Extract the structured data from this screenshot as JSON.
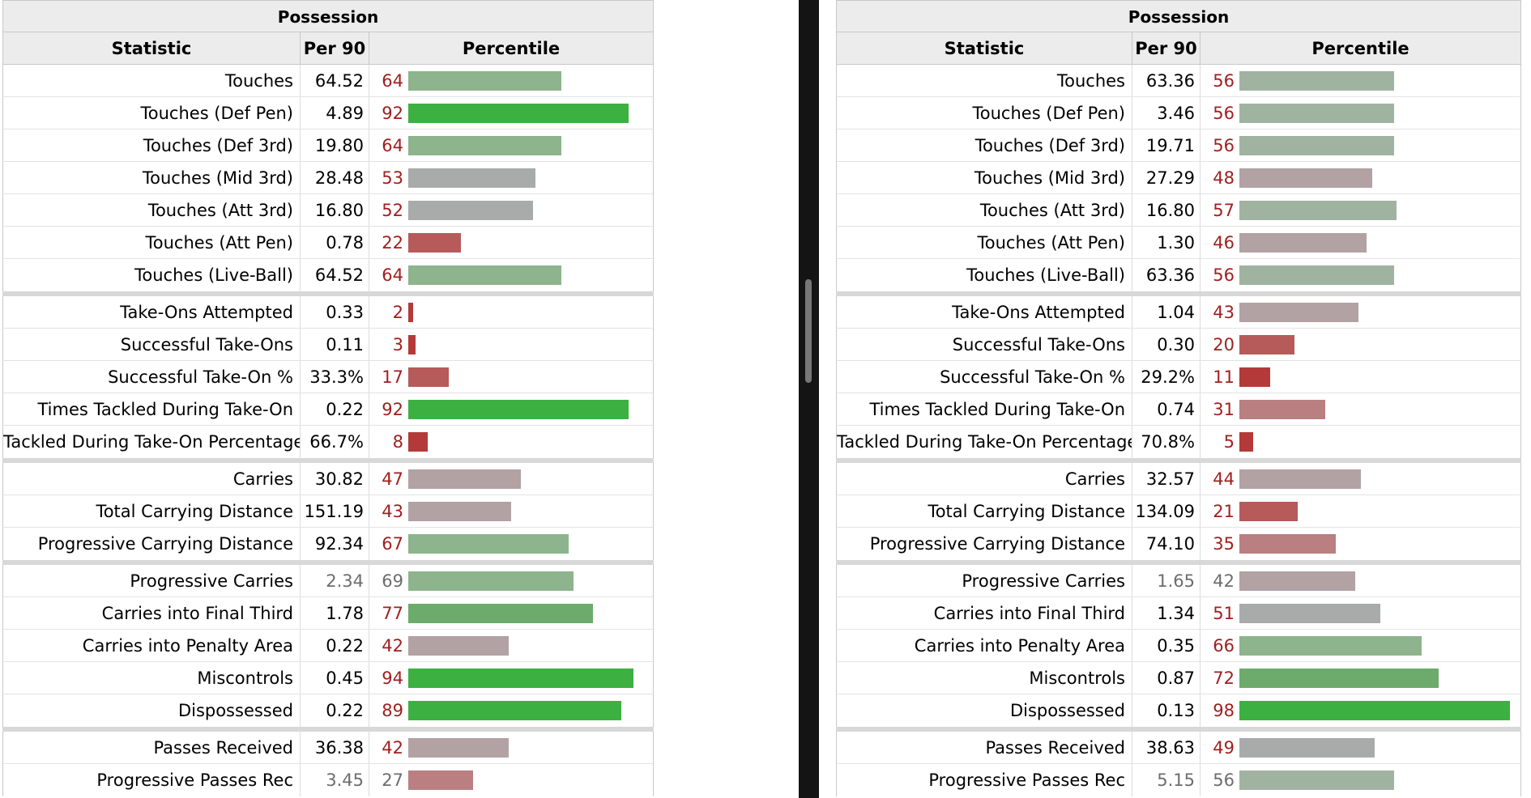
{
  "panels": [
    {
      "id": "left",
      "title": "Possession",
      "columns": {
        "stat": "Statistic",
        "per90": "Per 90",
        "percentile": "Percentile"
      },
      "groups": [
        [
          {
            "stat": "Touches",
            "per90": "64.52",
            "pct": 64
          },
          {
            "stat": "Touches (Def Pen)",
            "per90": "4.89",
            "pct": 92
          },
          {
            "stat": "Touches (Def 3rd)",
            "per90": "19.80",
            "pct": 64
          },
          {
            "stat": "Touches (Mid 3rd)",
            "per90": "28.48",
            "pct": 53
          },
          {
            "stat": "Touches (Att 3rd)",
            "per90": "16.80",
            "pct": 52
          },
          {
            "stat": "Touches (Att Pen)",
            "per90": "0.78",
            "pct": 22
          },
          {
            "stat": "Touches (Live-Ball)",
            "per90": "64.52",
            "pct": 64
          }
        ],
        [
          {
            "stat": "Take-Ons Attempted",
            "per90": "0.33",
            "pct": 2
          },
          {
            "stat": "Successful Take-Ons",
            "per90": "0.11",
            "pct": 3
          },
          {
            "stat": "Successful Take-On %",
            "per90": "33.3%",
            "pct": 17
          },
          {
            "stat": "Times Tackled During Take-On",
            "per90": "0.22",
            "pct": 92
          },
          {
            "stat": "Tackled During Take-On Percentage",
            "per90": "66.7%",
            "pct": 8
          }
        ],
        [
          {
            "stat": "Carries",
            "per90": "30.82",
            "pct": 47
          },
          {
            "stat": "Total Carrying Distance",
            "per90": "151.19",
            "pct": 43
          },
          {
            "stat": "Progressive Carrying Distance",
            "per90": "92.34",
            "pct": 67
          }
        ],
        [
          {
            "stat": "Progressive Carries",
            "per90": "2.34",
            "pct": 69,
            "dim": true
          },
          {
            "stat": "Carries into Final Third",
            "per90": "1.78",
            "pct": 77
          },
          {
            "stat": "Carries into Penalty Area",
            "per90": "0.22",
            "pct": 42
          },
          {
            "stat": "Miscontrols",
            "per90": "0.45",
            "pct": 94
          },
          {
            "stat": "Dispossessed",
            "per90": "0.22",
            "pct": 89
          }
        ],
        [
          {
            "stat": "Passes Received",
            "per90": "36.38",
            "pct": 42
          },
          {
            "stat": "Progressive Passes Rec",
            "per90": "3.45",
            "pct": 27,
            "dim": true
          }
        ]
      ]
    },
    {
      "id": "right",
      "title": "Possession",
      "columns": {
        "stat": "Statistic",
        "per90": "Per 90",
        "percentile": "Percentile"
      },
      "groups": [
        [
          {
            "stat": "Touches",
            "per90": "63.36",
            "pct": 56
          },
          {
            "stat": "Touches (Def Pen)",
            "per90": "3.46",
            "pct": 56
          },
          {
            "stat": "Touches (Def 3rd)",
            "per90": "19.71",
            "pct": 56
          },
          {
            "stat": "Touches (Mid 3rd)",
            "per90": "27.29",
            "pct": 48
          },
          {
            "stat": "Touches (Att 3rd)",
            "per90": "16.80",
            "pct": 57
          },
          {
            "stat": "Touches (Att Pen)",
            "per90": "1.30",
            "pct": 46
          },
          {
            "stat": "Touches (Live-Ball)",
            "per90": "63.36",
            "pct": 56
          }
        ],
        [
          {
            "stat": "Take-Ons Attempted",
            "per90": "1.04",
            "pct": 43
          },
          {
            "stat": "Successful Take-Ons",
            "per90": "0.30",
            "pct": 20
          },
          {
            "stat": "Successful Take-On %",
            "per90": "29.2%",
            "pct": 11
          },
          {
            "stat": "Times Tackled During Take-On",
            "per90": "0.74",
            "pct": 31
          },
          {
            "stat": "Tackled During Take-On Percentage",
            "per90": "70.8%",
            "pct": 5
          }
        ],
        [
          {
            "stat": "Carries",
            "per90": "32.57",
            "pct": 44
          },
          {
            "stat": "Total Carrying Distance",
            "per90": "134.09",
            "pct": 21
          },
          {
            "stat": "Progressive Carrying Distance",
            "per90": "74.10",
            "pct": 35
          }
        ],
        [
          {
            "stat": "Progressive Carries",
            "per90": "1.65",
            "pct": 42,
            "dim": true
          },
          {
            "stat": "Carries into Final Third",
            "per90": "1.34",
            "pct": 51
          },
          {
            "stat": "Carries into Penalty Area",
            "per90": "0.35",
            "pct": 66
          },
          {
            "stat": "Miscontrols",
            "per90": "0.87",
            "pct": 72
          },
          {
            "stat": "Dispossessed",
            "per90": "0.13",
            "pct": 98
          }
        ],
        [
          {
            "stat": "Passes Received",
            "per90": "38.63",
            "pct": 49
          },
          {
            "stat": "Progressive Passes Rec",
            "per90": "5.15",
            "pct": 56,
            "dim": true
          }
        ]
      ]
    }
  ],
  "colors": {
    "very_high": "#3db042",
    "high": "#6cab6c",
    "above_avg": "#8db48d",
    "mid_high": "#a0b3a0",
    "mid": "#a9abab",
    "mid_low": "#b2a2a4",
    "below_avg": "#b97f81",
    "low": "#b65a5a",
    "very_low": "#b43a3a"
  }
}
